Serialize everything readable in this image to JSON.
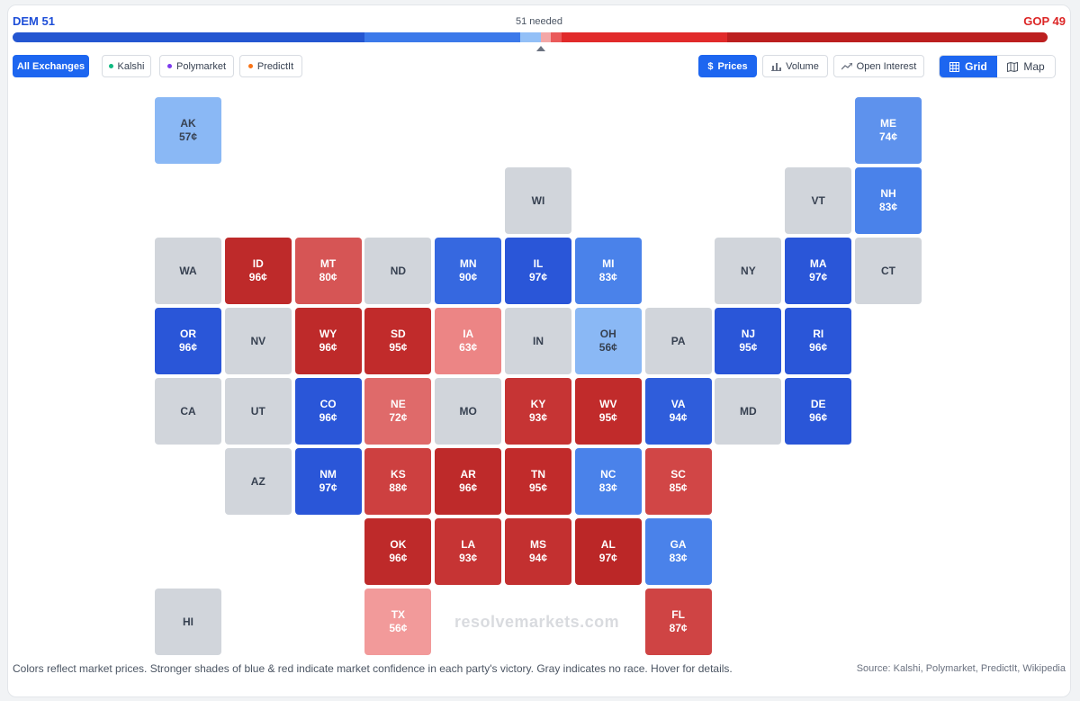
{
  "header": {
    "dem_label": "DEM 51",
    "needed_label": "51 needed",
    "gop_label": "GOP 49"
  },
  "seat_bar": {
    "segments": [
      {
        "party": "DEM",
        "color": "#2456d1",
        "share": 0.34
      },
      {
        "party": "DEM",
        "color": "#3b79ea",
        "share": 0.15
      },
      {
        "party": "DEM",
        "color": "#93c0f7",
        "share": 0.02
      },
      {
        "party": "GOP",
        "color": "#f3a7a7",
        "share": 0.01
      },
      {
        "party": "GOP",
        "color": "#ea5959",
        "share": 0.01
      },
      {
        "party": "GOP",
        "color": "#e12a2a",
        "share": 0.16
      },
      {
        "party": "GOP",
        "color": "#bc1f1f",
        "share": 0.31
      }
    ]
  },
  "filters": {
    "all": "All Exchanges",
    "kalshi": "Kalshi",
    "polymarket": "Polymarket",
    "predictit": "PredictIt"
  },
  "metrics": {
    "prices": "Prices",
    "volume": "Volume",
    "open_interest": "Open Interest"
  },
  "view": {
    "grid": "Grid",
    "map": "Map"
  },
  "colors": {
    "accent": "#1d66f0",
    "kalshi_dot": "#10b981",
    "polymarket_dot": "#7c3aed",
    "predictit_dot": "#f97316",
    "no_race": "#d1d5db"
  },
  "states": [
    {
      "abbr": "AK",
      "price": "57¢",
      "color": "#8ab8f5",
      "text": "#374151"
    },
    {
      "abbr": "ME",
      "price": "74¢",
      "color": "#5e92ed",
      "text": "#ffffff"
    },
    {
      "abbr": "WI",
      "price": "",
      "color": "#d1d5db",
      "text": "#374151"
    },
    {
      "abbr": "VT",
      "price": "",
      "color": "#d1d5db",
      "text": "#374151"
    },
    {
      "abbr": "NH",
      "price": "83¢",
      "color": "#4a82ea",
      "text": "#ffffff"
    },
    {
      "abbr": "WA",
      "price": "",
      "color": "#d1d5db",
      "text": "#374151"
    },
    {
      "abbr": "ID",
      "price": "96¢",
      "color": "#be2a2a",
      "text": "#ffffff"
    },
    {
      "abbr": "MT",
      "price": "80¢",
      "color": "#d65555",
      "text": "#ffffff"
    },
    {
      "abbr": "ND",
      "price": "",
      "color": "#d1d5db",
      "text": "#374151"
    },
    {
      "abbr": "MN",
      "price": "90¢",
      "color": "#3668e0",
      "text": "#ffffff"
    },
    {
      "abbr": "IL",
      "price": "97¢",
      "color": "#2a56d8",
      "text": "#ffffff"
    },
    {
      "abbr": "MI",
      "price": "83¢",
      "color": "#4a82ea",
      "text": "#ffffff"
    },
    {
      "abbr": "NY",
      "price": "",
      "color": "#d1d5db",
      "text": "#374151"
    },
    {
      "abbr": "MA",
      "price": "97¢",
      "color": "#2a56d8",
      "text": "#ffffff"
    },
    {
      "abbr": "CT",
      "price": "",
      "color": "#d1d5db",
      "text": "#374151"
    },
    {
      "abbr": "OR",
      "price": "96¢",
      "color": "#2a56d8",
      "text": "#ffffff"
    },
    {
      "abbr": "NV",
      "price": "",
      "color": "#d1d5db",
      "text": "#374151"
    },
    {
      "abbr": "WY",
      "price": "96¢",
      "color": "#be2a2a",
      "text": "#ffffff"
    },
    {
      "abbr": "SD",
      "price": "95¢",
      "color": "#c12b2b",
      "text": "#ffffff"
    },
    {
      "abbr": "IA",
      "price": "63¢",
      "color": "#ec8585",
      "text": "#ffffff"
    },
    {
      "abbr": "IN",
      "price": "",
      "color": "#d1d5db",
      "text": "#374151"
    },
    {
      "abbr": "OH",
      "price": "56¢",
      "color": "#8ab8f5",
      "text": "#374151"
    },
    {
      "abbr": "PA",
      "price": "",
      "color": "#d1d5db",
      "text": "#374151"
    },
    {
      "abbr": "NJ",
      "price": "95¢",
      "color": "#2a56d8",
      "text": "#ffffff"
    },
    {
      "abbr": "RI",
      "price": "96¢",
      "color": "#2a56d8",
      "text": "#ffffff"
    },
    {
      "abbr": "CA",
      "price": "",
      "color": "#d1d5db",
      "text": "#374151"
    },
    {
      "abbr": "UT",
      "price": "",
      "color": "#d1d5db",
      "text": "#374151"
    },
    {
      "abbr": "CO",
      "price": "96¢",
      "color": "#2a56d8",
      "text": "#ffffff"
    },
    {
      "abbr": "NE",
      "price": "72¢",
      "color": "#df6a6a",
      "text": "#ffffff"
    },
    {
      "abbr": "MO",
      "price": "",
      "color": "#d1d5db",
      "text": "#374151"
    },
    {
      "abbr": "KY",
      "price": "93¢",
      "color": "#c63434",
      "text": "#ffffff"
    },
    {
      "abbr": "WV",
      "price": "95¢",
      "color": "#c12b2b",
      "text": "#ffffff"
    },
    {
      "abbr": "VA",
      "price": "94¢",
      "color": "#2f5ddb",
      "text": "#ffffff"
    },
    {
      "abbr": "MD",
      "price": "",
      "color": "#d1d5db",
      "text": "#374151"
    },
    {
      "abbr": "DE",
      "price": "96¢",
      "color": "#2a56d8",
      "text": "#ffffff"
    },
    {
      "abbr": "AZ",
      "price": "",
      "color": "#d1d5db",
      "text": "#374151"
    },
    {
      "abbr": "NM",
      "price": "97¢",
      "color": "#2a56d8",
      "text": "#ffffff"
    },
    {
      "abbr": "KS",
      "price": "88¢",
      "color": "#cd4040",
      "text": "#ffffff"
    },
    {
      "abbr": "AR",
      "price": "96¢",
      "color": "#be2a2a",
      "text": "#ffffff"
    },
    {
      "abbr": "TN",
      "price": "95¢",
      "color": "#c12b2b",
      "text": "#ffffff"
    },
    {
      "abbr": "NC",
      "price": "83¢",
      "color": "#4a82ea",
      "text": "#ffffff"
    },
    {
      "abbr": "SC",
      "price": "85¢",
      "color": "#d14646",
      "text": "#ffffff"
    },
    {
      "abbr": "OK",
      "price": "96¢",
      "color": "#be2a2a",
      "text": "#ffffff"
    },
    {
      "abbr": "LA",
      "price": "93¢",
      "color": "#c63434",
      "text": "#ffffff"
    },
    {
      "abbr": "MS",
      "price": "94¢",
      "color": "#c33030",
      "text": "#ffffff"
    },
    {
      "abbr": "AL",
      "price": "97¢",
      "color": "#bb2727",
      "text": "#ffffff"
    },
    {
      "abbr": "GA",
      "price": "83¢",
      "color": "#4a82ea",
      "text": "#ffffff"
    },
    {
      "abbr": "HI",
      "price": "",
      "color": "#d1d5db",
      "text": "#374151"
    },
    {
      "abbr": "TX",
      "price": "56¢",
      "color": "#f29a9a",
      "text": "#ffffff"
    },
    {
      "abbr": "FL",
      "price": "87¢",
      "color": "#cf4444",
      "text": "#ffffff"
    }
  ],
  "watermark": "resolvemarkets.com",
  "footer": {
    "note": "Colors reflect market prices. Stronger shades of blue & red indicate market confidence in each party's victory. Gray indicates no race. Hover for details.",
    "source": "Source: Kalshi, Polymarket, PredictIt, Wikipedia"
  }
}
